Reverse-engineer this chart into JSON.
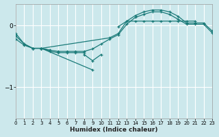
{
  "title": "",
  "xlabel": "Humidex (Indice chaleur)",
  "bg_color": "#cce8ec",
  "grid_color": "#ffffff",
  "line_color": "#1a7a78",
  "lines": [
    {
      "x": [
        0,
        1,
        2,
        3,
        11,
        12,
        13,
        14,
        15,
        16,
        17,
        18,
        19,
        20,
        21
      ],
      "y": [
        -0.22,
        -0.32,
        -0.37,
        -0.37,
        -0.2,
        -0.13,
        0.07,
        0.07,
        0.07,
        0.07,
        0.07,
        0.07,
        0.07,
        0.07,
        0.07
      ]
    },
    {
      "x": [
        0,
        1,
        2,
        3,
        4,
        5,
        6,
        7,
        8,
        9,
        10,
        11,
        12,
        13,
        14,
        15,
        16,
        17,
        18,
        19,
        20,
        21,
        22,
        23
      ],
      "y": [
        -0.17,
        -0.3,
        -0.37,
        -0.37,
        -0.4,
        -0.42,
        -0.42,
        -0.42,
        -0.42,
        -0.38,
        -0.3,
        -0.22,
        -0.15,
        0.02,
        0.13,
        0.18,
        0.22,
        0.22,
        0.18,
        0.1,
        0.02,
        0.02,
        0.02,
        -0.12
      ]
    },
    {
      "x": [
        0,
        1,
        2,
        3,
        4,
        5,
        6,
        7,
        8,
        9,
        10,
        11,
        12,
        13,
        14,
        15,
        16,
        17,
        18,
        19,
        20,
        21,
        22,
        23
      ],
      "y": [
        -0.13,
        -0.3,
        -0.37,
        -0.37,
        -0.4,
        null,
        null,
        null,
        -0.47,
        -0.57,
        -0.47,
        null,
        null,
        null,
        null,
        null,
        null,
        null,
        null,
        null,
        null,
        null,
        null,
        null
      ]
    },
    {
      "x": [
        3,
        9
      ],
      "y": [
        -0.37,
        -0.72
      ]
    },
    {
      "x": [
        3,
        4,
        5,
        6,
        7,
        8,
        9,
        10
      ],
      "y": [
        -0.37,
        -0.42,
        -0.44,
        -0.44,
        -0.44,
        -0.44,
        null,
        null
      ]
    },
    {
      "x": [
        12,
        13,
        14,
        15,
        16,
        17,
        18,
        19,
        20,
        21,
        22,
        23
      ],
      "y": [
        -0.02,
        0.07,
        0.16,
        0.22,
        0.25,
        0.25,
        0.22,
        0.15,
        0.04,
        0.04,
        0.04,
        -0.09
      ]
    }
  ],
  "xlim": [
    0,
    23
  ],
  "ylim": [
    -1.5,
    0.35
  ],
  "yticks": [
    0,
    -1
  ],
  "xticks": [
    0,
    1,
    2,
    3,
    4,
    5,
    6,
    7,
    8,
    9,
    10,
    11,
    12,
    13,
    14,
    15,
    16,
    17,
    18,
    19,
    20,
    21,
    22,
    23
  ],
  "figsize": [
    3.2,
    2.0
  ],
  "dpi": 100
}
